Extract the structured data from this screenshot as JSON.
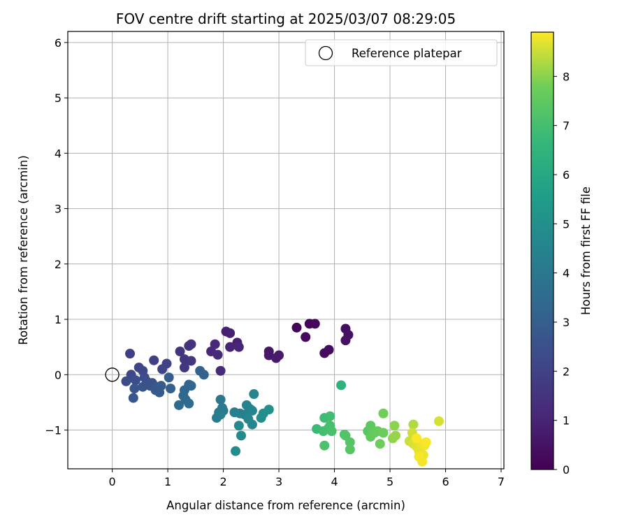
{
  "chart_data": {
    "type": "scatter",
    "title": "FOV centre drift starting at 2025/03/07 08:29:05",
    "xlabel": "Angular distance from reference (arcmin)",
    "ylabel": "Rotation from reference (arcmin)",
    "xlim": [
      -0.8,
      7.05
    ],
    "ylim": [
      -1.7,
      6.2
    ],
    "xticks": [
      "0",
      "1",
      "2",
      "3",
      "4",
      "5",
      "6",
      "7"
    ],
    "yticks": [
      "−1",
      "0",
      "1",
      "2",
      "3",
      "4",
      "5",
      "6"
    ],
    "grid": true,
    "legend": {
      "placement": "top-right",
      "entries": [
        "Reference platepar"
      ]
    },
    "reference_point": {
      "x": 0,
      "y": 0,
      "label": "Reference platepar",
      "marker": "open-circle"
    },
    "colorbar": {
      "label": "Hours from first FF file",
      "colormap": "viridis",
      "range": [
        0,
        8.9
      ],
      "ticks": [
        "0",
        "1",
        "2",
        "3",
        "4",
        "5",
        "6",
        "7",
        "8"
      ]
    },
    "points": [
      {
        "x": 3.32,
        "y": 0.85,
        "h": 0.1
      },
      {
        "x": 3.55,
        "y": 0.92,
        "h": 0.15
      },
      {
        "x": 3.65,
        "y": 0.92,
        "h": 0.2
      },
      {
        "x": 3.48,
        "y": 0.68,
        "h": 0.25
      },
      {
        "x": 3.82,
        "y": 0.39,
        "h": 0.3
      },
      {
        "x": 3.9,
        "y": 0.45,
        "h": 0.35
      },
      {
        "x": 4.2,
        "y": 0.83,
        "h": 0.4
      },
      {
        "x": 4.25,
        "y": 0.72,
        "h": 0.45
      },
      {
        "x": 4.2,
        "y": 0.62,
        "h": 0.5
      },
      {
        "x": 2.82,
        "y": 0.42,
        "h": 0.6
      },
      {
        "x": 2.82,
        "y": 0.35,
        "h": 0.65
      },
      {
        "x": 3.0,
        "y": 0.35,
        "h": 0.7
      },
      {
        "x": 2.95,
        "y": 0.3,
        "h": 0.75
      },
      {
        "x": 2.05,
        "y": 0.78,
        "h": 0.85
      },
      {
        "x": 2.12,
        "y": 0.75,
        "h": 0.9
      },
      {
        "x": 2.25,
        "y": 0.58,
        "h": 0.95
      },
      {
        "x": 2.12,
        "y": 0.5,
        "h": 1.0
      },
      {
        "x": 2.28,
        "y": 0.5,
        "h": 1.05
      },
      {
        "x": 1.85,
        "y": 0.55,
        "h": 1.1
      },
      {
        "x": 1.78,
        "y": 0.42,
        "h": 1.15
      },
      {
        "x": 1.9,
        "y": 0.36,
        "h": 1.2
      },
      {
        "x": 1.95,
        "y": 0.07,
        "h": 1.25
      },
      {
        "x": 1.42,
        "y": 0.55,
        "h": 1.4
      },
      {
        "x": 1.38,
        "y": 0.52,
        "h": 1.45
      },
      {
        "x": 1.22,
        "y": 0.42,
        "h": 1.5
      },
      {
        "x": 1.3,
        "y": 0.28,
        "h": 1.55
      },
      {
        "x": 1.42,
        "y": 0.25,
        "h": 1.6
      },
      {
        "x": 1.3,
        "y": 0.13,
        "h": 1.65
      },
      {
        "x": 0.32,
        "y": 0.38,
        "h": 1.9
      },
      {
        "x": 0.75,
        "y": 0.26,
        "h": 1.95
      },
      {
        "x": 0.98,
        "y": 0.2,
        "h": 2.0
      },
      {
        "x": 0.9,
        "y": 0.1,
        "h": 2.05
      },
      {
        "x": 0.48,
        "y": 0.13,
        "h": 2.1
      },
      {
        "x": 0.55,
        "y": 0.07,
        "h": 2.15
      },
      {
        "x": 0.34,
        "y": 0.0,
        "h": 2.2
      },
      {
        "x": 0.25,
        "y": -0.12,
        "h": 2.3
      },
      {
        "x": 0.42,
        "y": -0.1,
        "h": 2.35
      },
      {
        "x": 0.58,
        "y": -0.05,
        "h": 2.4
      },
      {
        "x": 0.62,
        "y": -0.12,
        "h": 2.45
      },
      {
        "x": 0.68,
        "y": -0.2,
        "h": 2.5
      },
      {
        "x": 0.72,
        "y": -0.15,
        "h": 2.55
      },
      {
        "x": 0.55,
        "y": -0.22,
        "h": 2.6
      },
      {
        "x": 0.4,
        "y": -0.25,
        "h": 2.65
      },
      {
        "x": 0.38,
        "y": -0.42,
        "h": 2.7
      },
      {
        "x": 0.8,
        "y": -0.22,
        "h": 2.75
      },
      {
        "x": 0.78,
        "y": -0.28,
        "h": 2.8
      },
      {
        "x": 0.85,
        "y": -0.32,
        "h": 2.85
      },
      {
        "x": 0.88,
        "y": -0.2,
        "h": 2.9
      },
      {
        "x": 1.02,
        "y": -0.05,
        "h": 2.95
      },
      {
        "x": 1.05,
        "y": -0.25,
        "h": 3.0
      },
      {
        "x": 1.58,
        "y": 0.07,
        "h": 3.1
      },
      {
        "x": 1.65,
        "y": 0.0,
        "h": 3.15
      },
      {
        "x": 1.38,
        "y": -0.18,
        "h": 3.2
      },
      {
        "x": 1.42,
        "y": -0.2,
        "h": 3.25
      },
      {
        "x": 1.3,
        "y": -0.28,
        "h": 3.3
      },
      {
        "x": 1.28,
        "y": -0.38,
        "h": 3.35
      },
      {
        "x": 1.32,
        "y": -0.45,
        "h": 3.4
      },
      {
        "x": 1.2,
        "y": -0.55,
        "h": 3.45
      },
      {
        "x": 1.38,
        "y": -0.52,
        "h": 3.5
      },
      {
        "x": 1.95,
        "y": -0.45,
        "h": 4.0
      },
      {
        "x": 1.98,
        "y": -0.6,
        "h": 4.05
      },
      {
        "x": 2.0,
        "y": -0.65,
        "h": 4.1
      },
      {
        "x": 1.92,
        "y": -0.68,
        "h": 4.15
      },
      {
        "x": 1.88,
        "y": -0.78,
        "h": 4.2
      },
      {
        "x": 1.95,
        "y": -0.72,
        "h": 4.25
      },
      {
        "x": 2.2,
        "y": -0.68,
        "h": 4.3
      },
      {
        "x": 2.3,
        "y": -0.7,
        "h": 4.35
      },
      {
        "x": 2.38,
        "y": -0.72,
        "h": 4.4
      },
      {
        "x": 2.42,
        "y": -0.55,
        "h": 4.45
      },
      {
        "x": 2.48,
        "y": -0.62,
        "h": 4.5
      },
      {
        "x": 2.52,
        "y": -0.65,
        "h": 4.55
      },
      {
        "x": 2.55,
        "y": -0.35,
        "h": 4.6
      },
      {
        "x": 2.45,
        "y": -0.8,
        "h": 4.65
      },
      {
        "x": 2.52,
        "y": -0.9,
        "h": 4.7
      },
      {
        "x": 2.28,
        "y": -0.92,
        "h": 4.75
      },
      {
        "x": 2.32,
        "y": -1.1,
        "h": 4.8
      },
      {
        "x": 2.22,
        "y": -1.38,
        "h": 4.85
      },
      {
        "x": 2.68,
        "y": -0.78,
        "h": 4.9
      },
      {
        "x": 2.72,
        "y": -0.7,
        "h": 4.95
      },
      {
        "x": 2.82,
        "y": -0.63,
        "h": 5.0
      },
      {
        "x": 4.12,
        "y": -0.19,
        "h": 6.4
      },
      {
        "x": 3.68,
        "y": -0.98,
        "h": 6.8
      },
      {
        "x": 3.82,
        "y": -0.78,
        "h": 6.85
      },
      {
        "x": 3.92,
        "y": -0.75,
        "h": 6.9
      },
      {
        "x": 3.8,
        "y": -1.02,
        "h": 6.95
      },
      {
        "x": 3.88,
        "y": -0.98,
        "h": 7.0
      },
      {
        "x": 3.92,
        "y": -0.92,
        "h": 7.05
      },
      {
        "x": 3.95,
        "y": -1.02,
        "h": 7.1
      },
      {
        "x": 3.82,
        "y": -1.28,
        "h": 7.15
      },
      {
        "x": 4.18,
        "y": -1.08,
        "h": 7.2
      },
      {
        "x": 4.2,
        "y": -1.1,
        "h": 7.25
      },
      {
        "x": 4.28,
        "y": -1.22,
        "h": 7.3
      },
      {
        "x": 4.28,
        "y": -1.35,
        "h": 7.35
      },
      {
        "x": 4.6,
        "y": -1.02,
        "h": 7.4
      },
      {
        "x": 4.65,
        "y": -0.92,
        "h": 7.45
      },
      {
        "x": 4.68,
        "y": -1.0,
        "h": 7.5
      },
      {
        "x": 4.65,
        "y": -1.12,
        "h": 7.55
      },
      {
        "x": 4.72,
        "y": -1.05,
        "h": 7.6
      },
      {
        "x": 4.78,
        "y": -1.02,
        "h": 7.65
      },
      {
        "x": 4.88,
        "y": -1.05,
        "h": 7.7
      },
      {
        "x": 4.82,
        "y": -1.25,
        "h": 7.75
      },
      {
        "x": 4.88,
        "y": -0.7,
        "h": 7.8
      },
      {
        "x": 5.08,
        "y": -0.92,
        "h": 8.0
      },
      {
        "x": 5.05,
        "y": -1.15,
        "h": 8.05
      },
      {
        "x": 5.1,
        "y": -1.1,
        "h": 8.1
      },
      {
        "x": 5.42,
        "y": -0.9,
        "h": 8.3
      },
      {
        "x": 5.88,
        "y": -0.84,
        "h": 8.6
      },
      {
        "x": 5.35,
        "y": -1.2,
        "h": 8.5
      },
      {
        "x": 5.4,
        "y": -1.05,
        "h": 8.55
      },
      {
        "x": 5.42,
        "y": -1.25,
        "h": 8.6
      },
      {
        "x": 5.45,
        "y": -1.18,
        "h": 8.62
      },
      {
        "x": 5.48,
        "y": -1.3,
        "h": 8.65
      },
      {
        "x": 5.5,
        "y": -1.22,
        "h": 8.68
      },
      {
        "x": 5.52,
        "y": -1.38,
        "h": 8.7
      },
      {
        "x": 5.55,
        "y": -1.32,
        "h": 8.72
      },
      {
        "x": 5.58,
        "y": -1.25,
        "h": 8.75
      },
      {
        "x": 5.6,
        "y": -1.45,
        "h": 8.78
      },
      {
        "x": 5.62,
        "y": -1.28,
        "h": 8.8
      },
      {
        "x": 5.58,
        "y": -1.57,
        "h": 8.82
      },
      {
        "x": 5.52,
        "y": -1.48,
        "h": 8.84
      },
      {
        "x": 5.65,
        "y": -1.22,
        "h": 8.86
      },
      {
        "x": 5.48,
        "y": -1.15,
        "h": 8.88
      }
    ]
  }
}
